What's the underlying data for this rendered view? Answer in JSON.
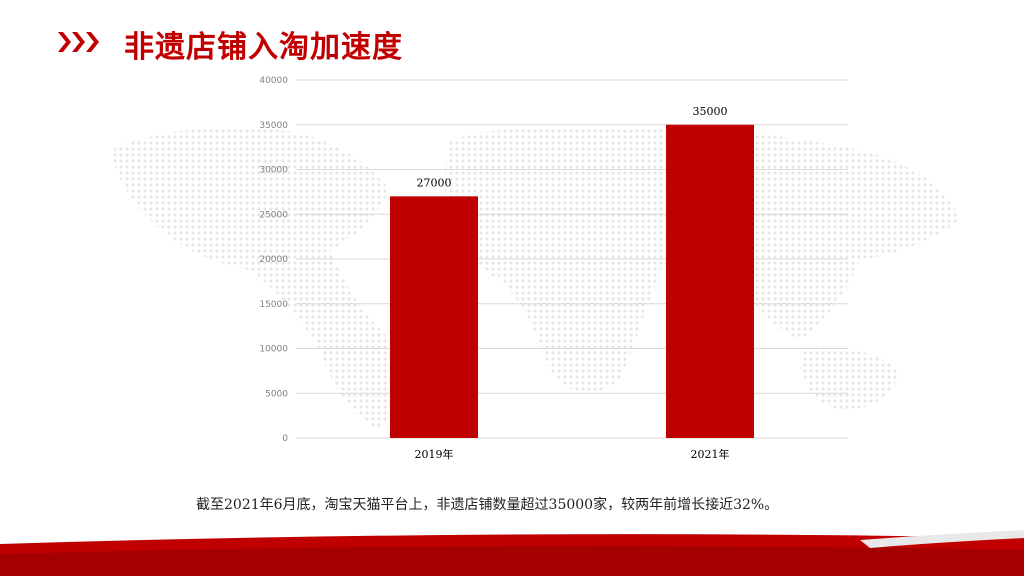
{
  "header": {
    "title": "非遗店铺入淘加速度",
    "icon": "triple-chevron-icon"
  },
  "caption": "截至2021年6月底，淘宝天猫平台上，非遗店铺数量超过35000家，较两年前增长接近32%。",
  "colors": {
    "accent": "#C00000",
    "bar": "#C00000",
    "grid": "#D9D9D9",
    "axis_text": "#7F7F7F"
  },
  "chart_data": {
    "type": "bar",
    "categories": [
      "2019年",
      "2021年"
    ],
    "values": [
      27000,
      35000
    ],
    "data_labels": [
      "27000",
      "35000"
    ],
    "ylim": [
      0,
      40000
    ],
    "yticks": [
      "0",
      "5000",
      "10000",
      "15000",
      "20000",
      "25000",
      "30000",
      "35000",
      "40000"
    ],
    "grid": true,
    "legend": "none",
    "title": "",
    "xlabel": "",
    "ylabel": ""
  }
}
